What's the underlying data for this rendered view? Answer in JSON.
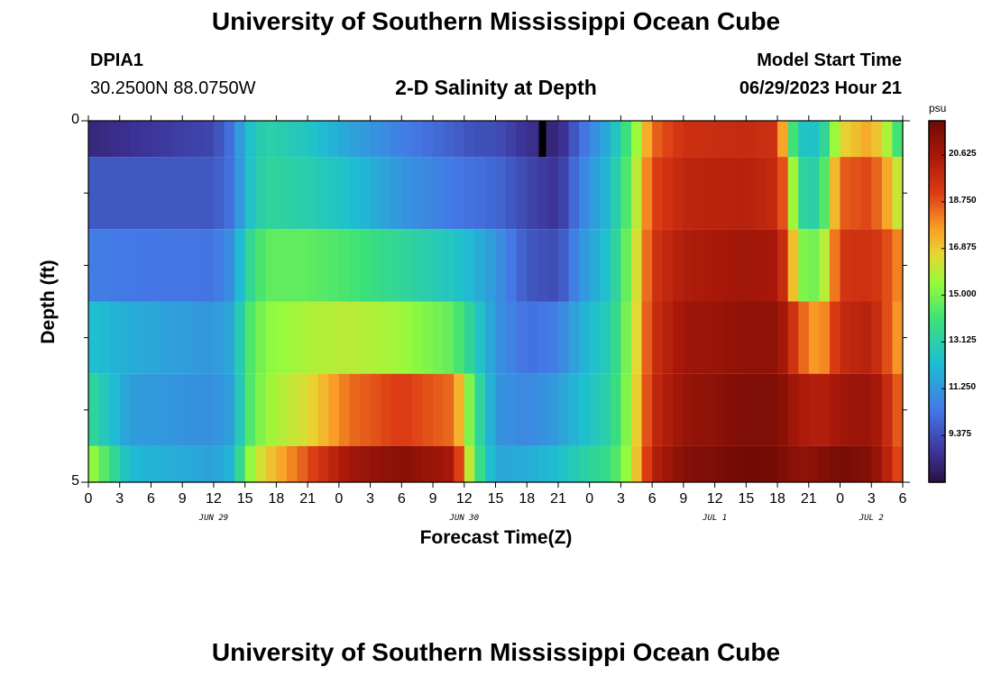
{
  "header": {
    "title": "University of Southern Mississippi Ocean Cube",
    "station_id": "DPIA1",
    "station_coords": "30.2500N  88.0750W",
    "chart_title": "2-D Salinity at Depth",
    "model_label": "Model Start Time",
    "model_time": "06/29/2023 Hour 21"
  },
  "footer": {
    "title": "University of Southern Mississippi Ocean Cube"
  },
  "chart_data": {
    "type": "heatmap",
    "title": "2-D Salinity at Depth",
    "xlabel": "Forecast Time(Z)",
    "ylabel": "Depth (ft)",
    "x_start_hour": 0,
    "x_end_hour": 78,
    "x_tick_labels": [
      "0",
      "3",
      "6",
      "9",
      "12",
      "15",
      "18",
      "21",
      "0",
      "3",
      "6",
      "9",
      "12",
      "15",
      "18",
      "21",
      "0",
      "3",
      "6",
      "9",
      "12",
      "15",
      "18",
      "21",
      "0",
      "3",
      "6"
    ],
    "date_labels": [
      {
        "label": "JUN 29",
        "hour": 12
      },
      {
        "label": "JUN 30",
        "hour": 36
      },
      {
        "label": "JUL 1",
        "hour": 60
      },
      {
        "label": "JUL 2",
        "hour": 75
      }
    ],
    "y_tick_labels": [
      {
        "label": "0",
        "depth": 0
      },
      {
        "label": "5",
        "depth": 5
      }
    ],
    "depth_bands": [
      [
        0,
        0.5
      ],
      [
        0.5,
        1.5
      ],
      [
        1.5,
        2.5
      ],
      [
        2.5,
        3.5
      ],
      [
        3.5,
        4.5
      ],
      [
        4.5,
        5
      ]
    ],
    "colorbar": {
      "unit": "psu",
      "min": 7.5,
      "max": 22.0,
      "ticks": [
        "9.375",
        "11.250",
        "13.125",
        "15.000",
        "16.875",
        "18.750",
        "20.625"
      ]
    },
    "salinity_keyframes": [
      {
        "hour": 0,
        "values": [
          8.3,
          9.6,
          10.6,
          12.4,
          13.6,
          15.8
        ]
      },
      {
        "hour": 4,
        "values": [
          8.6,
          9.6,
          10.4,
          11.8,
          11.4,
          12.2
        ]
      },
      {
        "hour": 12,
        "values": [
          9.2,
          9.6,
          10.3,
          11.2,
          11.0,
          11.5
        ]
      },
      {
        "hour": 14,
        "values": [
          10.5,
          10.4,
          11.2,
          11.8,
          11.6,
          12.2
        ]
      },
      {
        "hour": 15,
        "values": [
          12.2,
          12.2,
          13.2,
          14.0,
          14.0,
          15.0
        ]
      },
      {
        "hour": 17,
        "values": [
          13.2,
          13.4,
          14.6,
          15.3,
          15.5,
          16.8
        ]
      },
      {
        "hour": 21,
        "values": [
          12.6,
          13.0,
          14.6,
          15.8,
          16.5,
          18.8
        ]
      },
      {
        "hour": 25,
        "values": [
          11.6,
          12.4,
          14.2,
          16.0,
          18.4,
          20.8
        ]
      },
      {
        "hour": 30,
        "values": [
          10.6,
          11.2,
          13.4,
          15.6,
          19.2,
          21.4
        ]
      },
      {
        "hour": 35,
        "values": [
          9.8,
          10.4,
          12.6,
          14.6,
          18.4,
          20.6
        ]
      },
      {
        "hour": 37,
        "values": [
          9.4,
          10.2,
          12.0,
          13.0,
          14.0,
          14.5
        ]
      },
      {
        "hour": 39,
        "values": [
          9.4,
          10.0,
          11.2,
          11.2,
          11.2,
          11.6
        ]
      },
      {
        "hour": 42,
        "values": [
          8.6,
          9.2,
          9.6,
          10.2,
          10.8,
          11.8
        ]
      },
      {
        "hour": 45,
        "values": [
          8.2,
          8.6,
          9.3,
          10.6,
          11.4,
          12.3
        ]
      },
      {
        "hour": 47,
        "values": [
          10.0,
          10.5,
          11.0,
          11.8,
          12.2,
          13.0
        ]
      },
      {
        "hour": 50,
        "values": [
          12.0,
          12.3,
          12.6,
          13.0,
          13.2,
          13.8
        ]
      },
      {
        "hour": 52,
        "values": [
          14.6,
          15.0,
          15.4,
          15.6,
          15.8,
          16.0
        ]
      },
      {
        "hour": 54,
        "values": [
          18.4,
          19.0,
          19.4,
          19.6,
          19.8,
          20.2
        ]
      },
      {
        "hour": 57,
        "values": [
          19.6,
          20.0,
          20.4,
          20.8,
          21.0,
          21.4
        ]
      },
      {
        "hour": 63,
        "values": [
          19.8,
          20.2,
          20.8,
          21.2,
          21.6,
          21.9
        ]
      },
      {
        "hour": 66,
        "values": [
          19.5,
          19.8,
          20.6,
          21.2,
          21.6,
          21.8
        ]
      },
      {
        "hour": 67,
        "values": [
          15.6,
          17.8,
          19.0,
          20.2,
          21.0,
          21.4
        ]
      },
      {
        "hour": 68,
        "values": [
          12.6,
          13.4,
          15.2,
          18.8,
          20.6,
          21.2
        ]
      },
      {
        "hour": 70,
        "values": [
          12.4,
          13.0,
          14.8,
          17.4,
          20.2,
          21.4
        ]
      },
      {
        "hour": 72,
        "values": [
          16.6,
          18.6,
          19.4,
          19.8,
          20.8,
          21.8
        ]
      },
      {
        "hour": 75,
        "values": [
          17.6,
          19.0,
          19.6,
          20.2,
          21.0,
          21.5
        ]
      },
      {
        "hour": 77,
        "values": [
          15.2,
          17.0,
          18.6,
          18.4,
          19.4,
          19.6
        ]
      },
      {
        "hour": 78,
        "values": [
          13.0,
          15.4,
          17.6,
          17.2,
          18.0,
          18.4
        ]
      }
    ],
    "dark_marker": {
      "hour": 43.5,
      "depth_band": 0
    }
  }
}
